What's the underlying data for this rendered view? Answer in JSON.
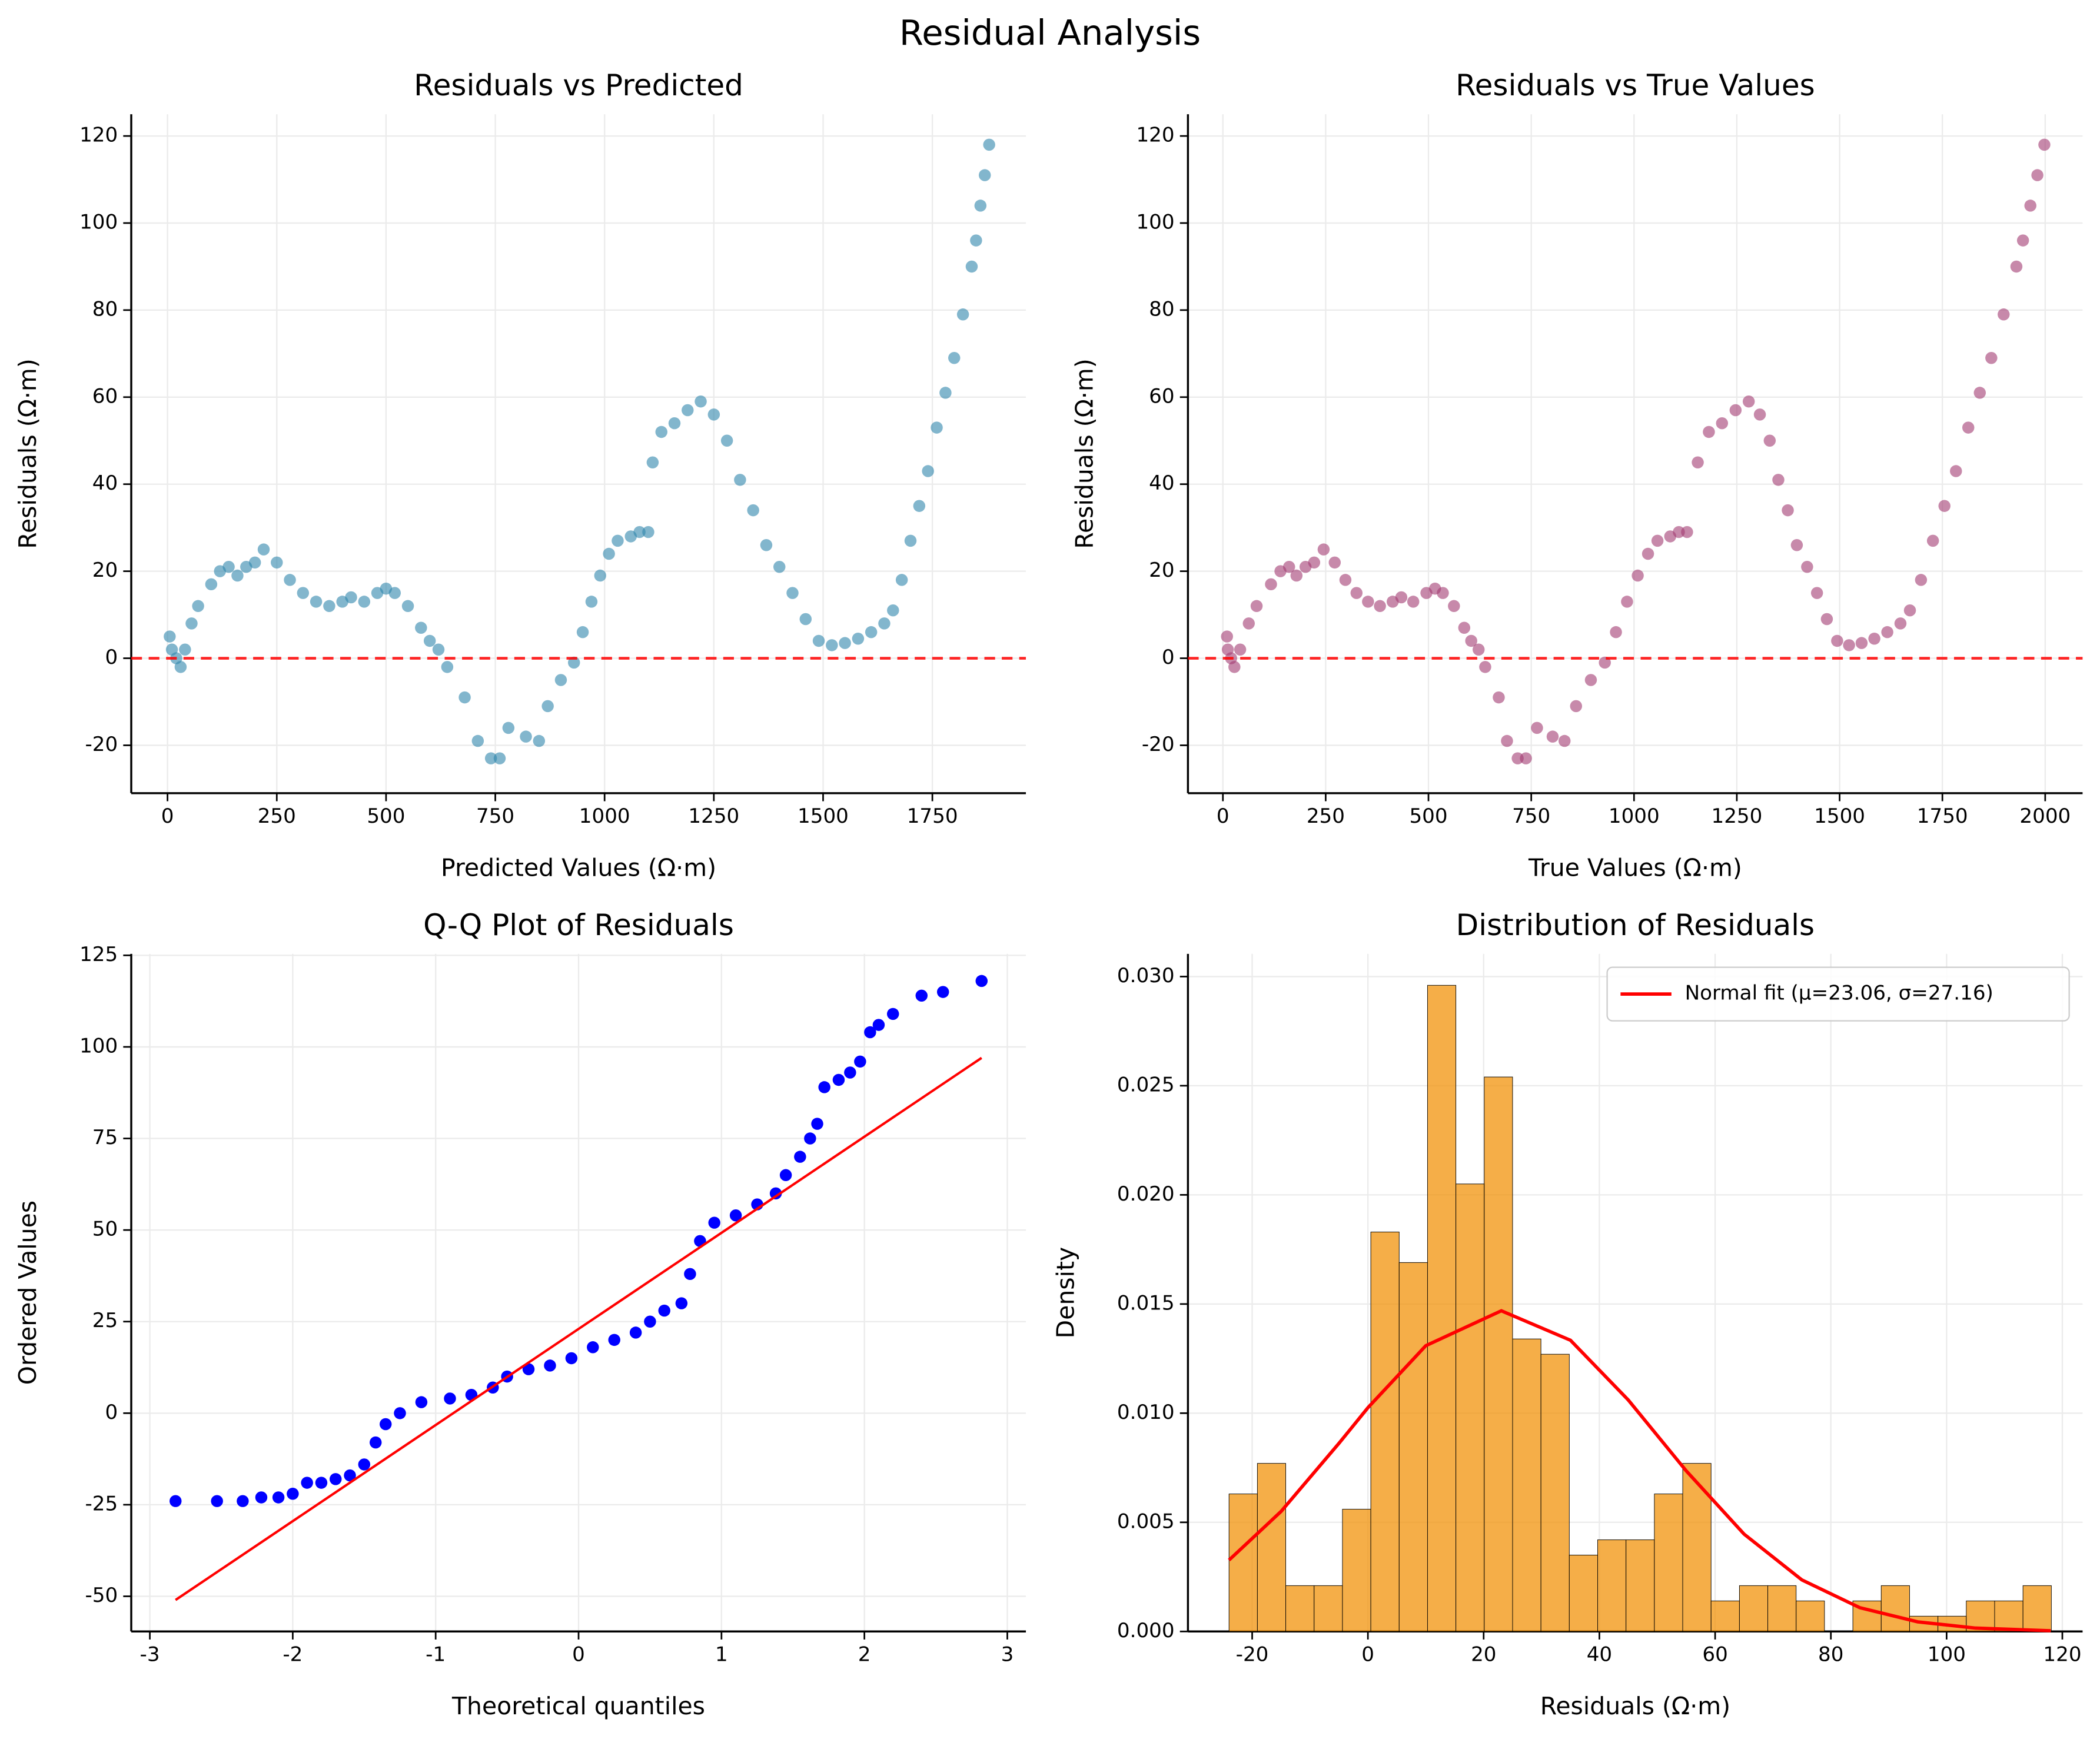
{
  "title": "Residual Analysis",
  "chart_data": [
    {
      "type": "scatter",
      "title": "Residuals vs Predicted",
      "x_label": "Predicted Values (Ω·m)",
      "y_label": "Residuals (Ω·m)",
      "color": "#2e86ab",
      "grid": true,
      "reference_line": 0,
      "reference_color": "#ff0000",
      "x": [
        5,
        10,
        20,
        30,
        40,
        55,
        70,
        100,
        120,
        140,
        160,
        180,
        200,
        220,
        250,
        280,
        310,
        340,
        370,
        400,
        420,
        450,
        480,
        500,
        520,
        550,
        580,
        600,
        620,
        640,
        680,
        710,
        740,
        760,
        780,
        820,
        850,
        870,
        900,
        930,
        950,
        970,
        990,
        1010,
        1030,
        1060,
        1080,
        1100,
        1110,
        1130,
        1160,
        1190,
        1220,
        1250,
        1280,
        1310,
        1340,
        1370,
        1400,
        1430,
        1460,
        1490,
        1520,
        1550,
        1580,
        1610,
        1640,
        1660,
        1680,
        1700,
        1720,
        1740,
        1760,
        1780,
        1800,
        1820,
        1840,
        1850,
        1860,
        1870,
        1880
      ],
      "values": [
        5,
        2,
        0,
        -2,
        2,
        8,
        12,
        17,
        20,
        21,
        19,
        21,
        22,
        25,
        22,
        18,
        15,
        13,
        12,
        13,
        14,
        13,
        15,
        16,
        15,
        12,
        7,
        4,
        2,
        -2,
        -9,
        -19,
        -23,
        -23,
        -16,
        -18,
        -19,
        -11,
        -5,
        -1,
        6,
        13,
        19,
        24,
        27,
        28,
        29,
        29,
        45,
        52,
        54,
        57,
        59,
        56,
        50,
        41,
        34,
        26,
        21,
        15,
        9,
        4,
        3,
        3.5,
        4.5,
        6,
        8,
        11,
        18,
        27,
        35,
        43,
        53,
        61,
        69,
        79,
        90,
        96,
        104,
        111,
        118
      ],
      "xlim": [
        -83,
        1964
      ],
      "ylim": [
        -31,
        125
      ],
      "xticks": [
        0,
        250,
        500,
        750,
        1000,
        1250,
        1500,
        1750
      ],
      "yticks": [
        -20,
        0,
        20,
        40,
        60,
        80,
        100,
        120
      ]
    },
    {
      "type": "scatter",
      "title": "Residuals vs True Values",
      "x_label": "True Values (Ω·m)",
      "y_label": "Residuals (Ω·m)",
      "color": "#a23b72",
      "grid": true,
      "reference_line": 0,
      "reference_color": "#ff0000",
      "x": [
        10,
        12,
        20,
        28,
        42,
        63,
        82,
        117,
        140,
        161,
        179,
        201,
        222,
        245,
        272,
        298,
        325,
        353,
        382,
        413,
        434,
        463,
        495,
        516,
        535,
        562,
        587,
        604,
        622,
        638,
        671,
        691,
        717,
        737,
        764,
        802,
        831,
        859,
        895,
        929,
        956,
        983,
        1009,
        1034,
        1057,
        1088,
        1109,
        1129,
        1155,
        1182,
        1214,
        1247,
        1279,
        1306,
        1330,
        1351,
        1374,
        1396,
        1421,
        1445,
        1469,
        1494,
        1523,
        1553.5,
        1584.5,
        1616,
        1648,
        1671,
        1698,
        1727,
        1755,
        1783,
        1813,
        1841,
        1869,
        1899,
        1930,
        1946,
        1964,
        1981,
        1998
      ],
      "values": [
        5,
        2,
        0,
        -2,
        2,
        8,
        12,
        17,
        20,
        21,
        19,
        21,
        22,
        25,
        22,
        18,
        15,
        13,
        12,
        13,
        14,
        13,
        15,
        16,
        15,
        12,
        7,
        4,
        2,
        -2,
        -9,
        -19,
        -23,
        -23,
        -16,
        -18,
        -19,
        -11,
        -5,
        -1,
        6,
        13,
        19,
        24,
        27,
        28,
        29,
        29,
        45,
        52,
        54,
        57,
        59,
        56,
        50,
        41,
        34,
        26,
        21,
        15,
        9,
        4,
        3,
        3.5,
        4.5,
        6,
        8,
        11,
        18,
        27,
        35,
        43,
        53,
        61,
        69,
        79,
        90,
        96,
        104,
        111,
        118
      ],
      "xlim": [
        -85,
        2091
      ],
      "ylim": [
        -31,
        125
      ],
      "xticks": [
        0,
        250,
        500,
        750,
        1000,
        1250,
        1500,
        1750,
        2000
      ],
      "yticks": [
        -20,
        0,
        20,
        40,
        60,
        80,
        100,
        120
      ]
    },
    {
      "type": "scatter",
      "title": "Q-Q Plot of Residuals",
      "x_label": "Theoretical quantiles",
      "y_label": "Ordered Values",
      "color": "#0000ff",
      "grid": true,
      "x": [
        -2.82,
        -2.53,
        -2.35,
        -2.22,
        -2.1,
        -2.0,
        -1.9,
        -1.8,
        -1.7,
        -1.6,
        -1.5,
        -1.42,
        -1.35,
        -1.25,
        -1.1,
        -0.9,
        -0.75,
        -0.6,
        -0.5,
        -0.35,
        -0.2,
        -0.05,
        0.1,
        0.25,
        0.4,
        0.5,
        0.6,
        0.72,
        0.78,
        0.85,
        0.95,
        1.1,
        1.25,
        1.38,
        1.45,
        1.55,
        1.62,
        1.67,
        1.72,
        1.82,
        1.9,
        1.97,
        2.04,
        2.1,
        2.2,
        2.4,
        2.55,
        2.82
      ],
      "values": [
        -24,
        -24,
        -24,
        -23,
        -23,
        -22,
        -19,
        -19,
        -18,
        -17,
        -14,
        -8,
        -3,
        0,
        3,
        4,
        5,
        7,
        10,
        12,
        13,
        15,
        18,
        20,
        22,
        25,
        28,
        30,
        38,
        47,
        52,
        54,
        57,
        60,
        65,
        70,
        75,
        79,
        89,
        91,
        93,
        96,
        104,
        106,
        109,
        114,
        115,
        118
      ],
      "fit_line": {
        "color": "#ff0000",
        "x": [
          -2.82,
          2.82
        ],
        "values": [
          -51,
          97
        ]
      },
      "xlim": [
        -3.13,
        3.13
      ],
      "ylim": [
        -59.6,
        125.4
      ],
      "xticks": [
        -3,
        -2,
        -1,
        0,
        1,
        2,
        3
      ],
      "yticks": [
        -50,
        -25,
        0,
        25,
        50,
        75,
        100,
        125
      ]
    },
    {
      "type": "histogram",
      "title": "Distribution of Residuals",
      "x_label": "Residuals (Ω·m)",
      "y_label": "Density",
      "color": "#f18f01",
      "grid": true,
      "legend": "upper right",
      "bins": [
        -24,
        -19.1,
        -14.2,
        -9.3,
        -4.4,
        0.5,
        5.4,
        10.3,
        15.2,
        20.1,
        25.0,
        29.9,
        34.8,
        39.7,
        44.6,
        49.5,
        54.4,
        59.3,
        64.2,
        69.1,
        74.0,
        78.9,
        83.8,
        88.7,
        93.6,
        98.5,
        103.4,
        108.3,
        113.2,
        118.1
      ],
      "values": [
        0.0063,
        0.0077,
        0.0021,
        0.0021,
        0.0056,
        0.0183,
        0.0169,
        0.0296,
        0.0205,
        0.0254,
        0.0134,
        0.0127,
        0.0035,
        0.0042,
        0.0042,
        0.0063,
        0.0077,
        0.0014,
        0.0021,
        0.0021,
        0.0014,
        0,
        0.0014,
        0.0021,
        0.0007,
        0.0007,
        0.0014,
        0.0014,
        0.0021
      ],
      "series": [
        {
          "name": "Normal fit (μ=23.06, σ=27.16)",
          "color": "#ff0000",
          "x": [
            -24,
            -15,
            -5,
            0,
            10,
            23.06,
            35,
            45,
            55,
            65,
            75,
            85,
            95,
            105,
            118
          ],
          "values": [
            0.00327,
            0.0055,
            0.00862,
            0.01025,
            0.01309,
            0.01469,
            0.01334,
            0.0106,
            0.00736,
            0.00446,
            0.00236,
            0.00109,
            0.00044,
            0.000155,
            3.3e-05
          ]
        }
      ],
      "xlim": [
        -31.1,
        123.5
      ],
      "ylim": [
        0,
        0.03104
      ],
      "xticks": [
        -20,
        0,
        20,
        40,
        60,
        80,
        100,
        120
      ],
      "yticks": [
        {
          "value": 0,
          "label": "0.000"
        },
        {
          "value": 0.005,
          "label": "0.005"
        },
        {
          "value": 0.01,
          "label": "0.010"
        },
        {
          "value": 0.015,
          "label": "0.015"
        },
        {
          "value": 0.02,
          "label": "0.020"
        },
        {
          "value": 0.025,
          "label": "0.025"
        },
        {
          "value": 0.03,
          "label": "0.030"
        }
      ]
    }
  ]
}
